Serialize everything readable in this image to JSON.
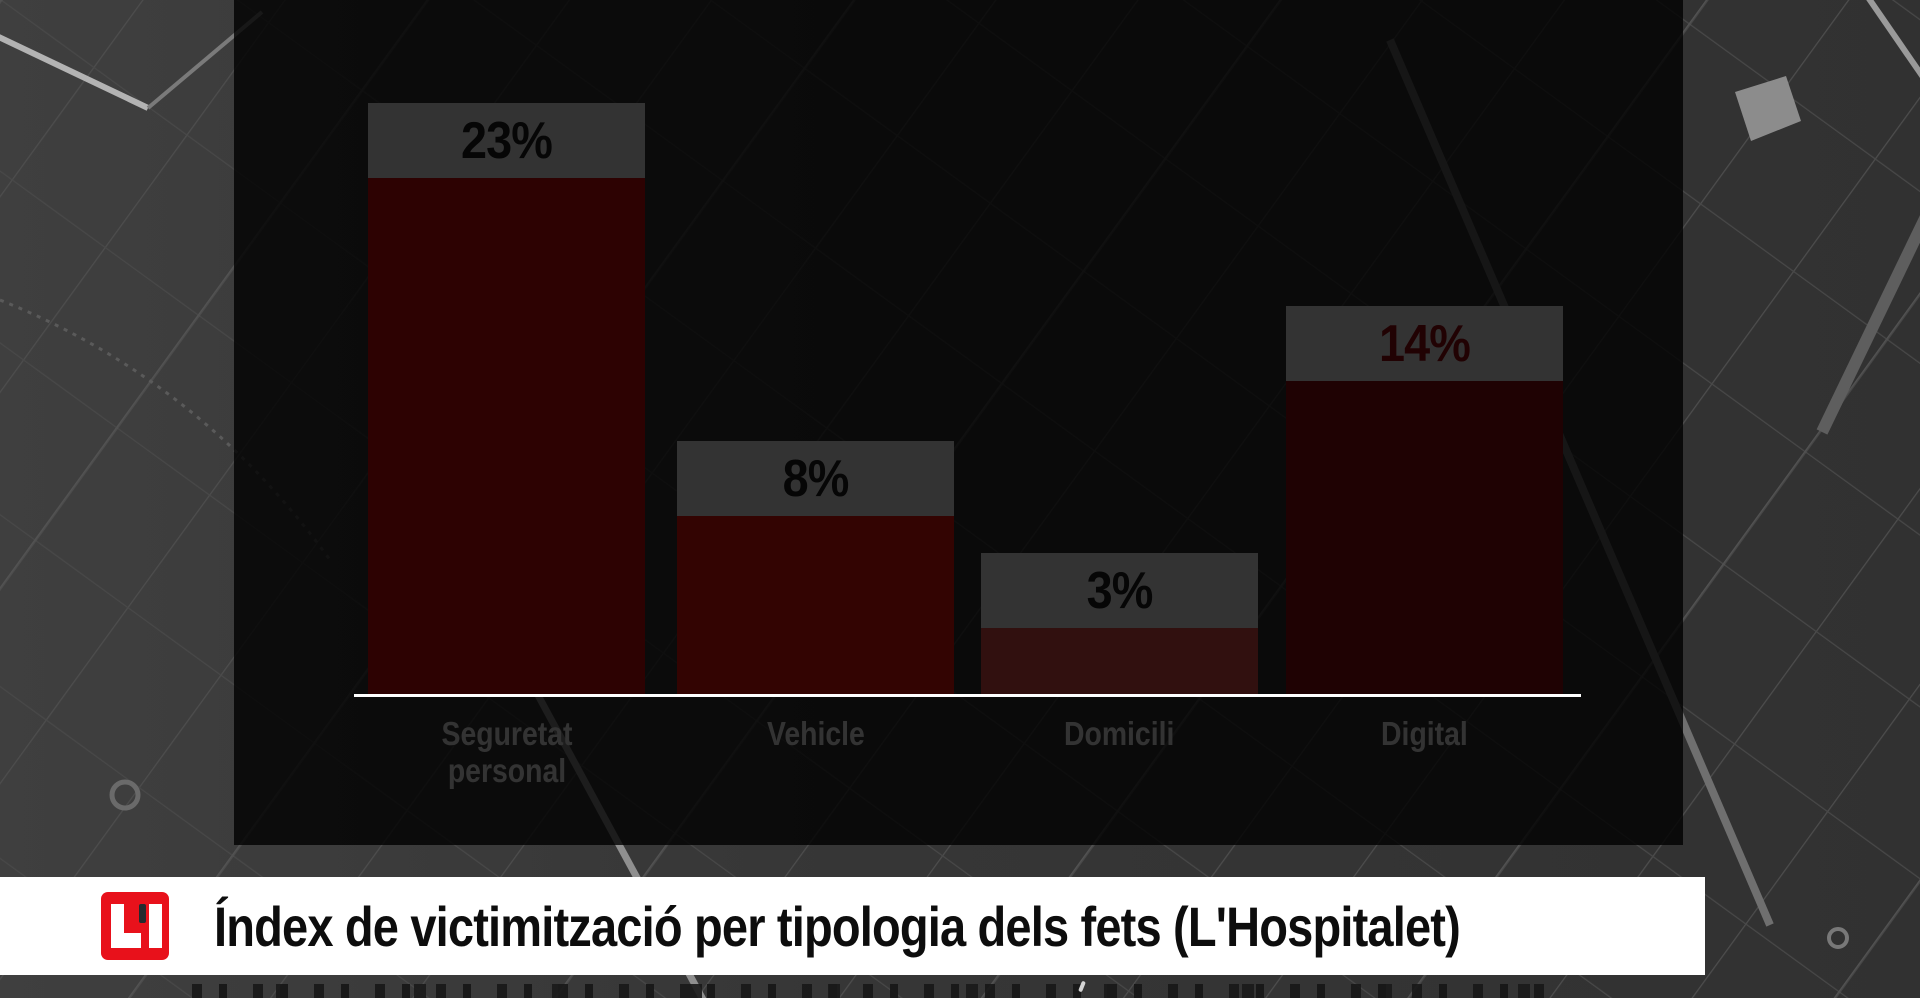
{
  "chart_data": {
    "type": "bar",
    "title": "Índex de victimització per tipologia dels fets (L'Hospitalet)",
    "categories": [
      "Seguretat personal",
      "Vehicle",
      "Domicili",
      "Digital"
    ],
    "values": [
      23,
      8,
      3,
      14
    ],
    "value_labels": [
      "23%",
      "8%",
      "3%",
      "14%"
    ],
    "unit": "%",
    "ylim": [
      0,
      25
    ],
    "grid": false,
    "legend": false,
    "bar_colors": [
      "#de0c0a",
      "#ff140e",
      "#f4514e",
      "#9c0c10"
    ],
    "value_label_colors": [
      "#1e1e1e",
      "#1e1e1e",
      "#1e1e1e",
      "#a30d12"
    ],
    "value_cap_background": "#ffffff",
    "category_label_color": "#ffffff",
    "baseline_color": "#ffffff",
    "panel_background": "rgba(0,0,0,0.80)"
  },
  "banner": {
    "title": "Índex de victimització per tipologia dels fets (L'Hospitalet)",
    "background": "#ffffff",
    "title_color": "#0d0d0d",
    "logo": {
      "letters": "L'I",
      "background": "#e8111b",
      "letter_color": "#ffffff",
      "apostrophe_color": "#232a2e"
    }
  },
  "background": {
    "base_color": "#373737",
    "street_color": "#4d4d4d"
  }
}
